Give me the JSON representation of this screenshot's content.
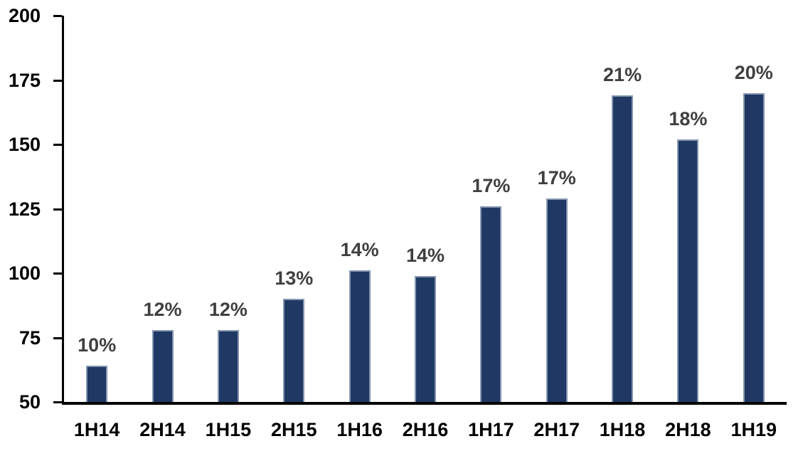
{
  "chart_data": {
    "type": "bar",
    "title": "",
    "xlabel": "",
    "ylabel": "",
    "categories": [
      "1H14",
      "2H14",
      "1H15",
      "2H15",
      "1H16",
      "2H16",
      "1H17",
      "2H17",
      "1H18",
      "2H18",
      "1H19"
    ],
    "values": [
      64,
      78,
      78,
      90,
      101,
      99,
      126,
      129,
      169,
      152,
      170
    ],
    "bar_labels": [
      "10%",
      "12%",
      "12%",
      "13%",
      "14%",
      "14%",
      "17%",
      "17%",
      "21%",
      "18%",
      "20%"
    ],
    "ylim": [
      50,
      200
    ],
    "yticks": [
      50,
      75,
      100,
      125,
      150,
      175,
      200
    ],
    "grid": false,
    "legend_position": "none",
    "colors": {
      "bar_fill": "#1f3864",
      "bar_border": "#8496b0",
      "axis_line": "#000000",
      "axis_tick_label": "#000000",
      "data_label": "#3f3f3f",
      "background": "#ffffff"
    }
  }
}
